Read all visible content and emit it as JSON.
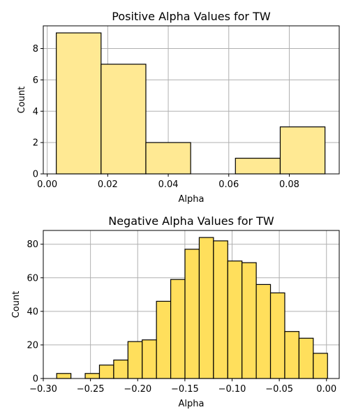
{
  "chart_data": [
    {
      "type": "bar",
      "title": "Positive Alpha Values for TW",
      "xlabel": "Alpha",
      "ylabel": "Count",
      "xlim": [
        -0.0013,
        0.0965
      ],
      "ylim": [
        0,
        9.45
      ],
      "xticks": [
        0.0,
        0.02,
        0.04,
        0.06,
        0.08
      ],
      "xtick_labels": [
        "0.00",
        "0.02",
        "0.04",
        "0.06",
        "0.08"
      ],
      "yticks": [
        0,
        2,
        4,
        6,
        8
      ],
      "ytick_labels": [
        "0",
        "2",
        "4",
        "6",
        "8"
      ],
      "grid": true,
      "color": "#ffe993",
      "bins": [
        {
          "x0": 0.003,
          "x1": 0.0178,
          "count": 9
        },
        {
          "x0": 0.0178,
          "x1": 0.0326,
          "count": 7
        },
        {
          "x0": 0.0326,
          "x1": 0.0474,
          "count": 2
        },
        {
          "x0": 0.0474,
          "x1": 0.0622,
          "count": 0
        },
        {
          "x0": 0.0622,
          "x1": 0.077,
          "count": 1
        },
        {
          "x0": 0.077,
          "x1": 0.0918,
          "count": 3
        }
      ]
    },
    {
      "type": "bar",
      "title": "Negative Alpha Values for TW",
      "xlabel": "Alpha",
      "ylabel": "Count",
      "xlim": [
        -0.3,
        0.0135
      ],
      "ylim": [
        0,
        88.2
      ],
      "xticks": [
        -0.3,
        -0.25,
        -0.2,
        -0.15,
        -0.1,
        -0.05,
        0.0
      ],
      "xtick_labels": [
        "−0.30",
        "−0.25",
        "−0.20",
        "−0.15",
        "−0.10",
        "−0.05",
        "0.00"
      ],
      "yticks": [
        0,
        20,
        40,
        60,
        80
      ],
      "ytick_labels": [
        "0",
        "20",
        "40",
        "60",
        "80"
      ],
      "grid": true,
      "color": "#ffdf5c",
      "bins": [
        {
          "x0": -0.2858,
          "x1": -0.2707,
          "count": 3
        },
        {
          "x0": -0.2707,
          "x1": -0.2556,
          "count": 0
        },
        {
          "x0": -0.2556,
          "x1": -0.2405,
          "count": 3
        },
        {
          "x0": -0.2405,
          "x1": -0.2254,
          "count": 8
        },
        {
          "x0": -0.2254,
          "x1": -0.2103,
          "count": 11
        },
        {
          "x0": -0.2103,
          "x1": -0.1952,
          "count": 22
        },
        {
          "x0": -0.1952,
          "x1": -0.1801,
          "count": 23
        },
        {
          "x0": -0.1801,
          "x1": -0.165,
          "count": 46
        },
        {
          "x0": -0.165,
          "x1": -0.1499,
          "count": 59
        },
        {
          "x0": -0.1499,
          "x1": -0.1348,
          "count": 77
        },
        {
          "x0": -0.1348,
          "x1": -0.1197,
          "count": 84
        },
        {
          "x0": -0.1197,
          "x1": -0.1046,
          "count": 82
        },
        {
          "x0": -0.1046,
          "x1": -0.0895,
          "count": 70
        },
        {
          "x0": -0.0895,
          "x1": -0.0744,
          "count": 69
        },
        {
          "x0": -0.0744,
          "x1": -0.0593,
          "count": 56
        },
        {
          "x0": -0.0593,
          "x1": -0.0442,
          "count": 51
        },
        {
          "x0": -0.0442,
          "x1": -0.0291,
          "count": 28
        },
        {
          "x0": -0.0291,
          "x1": -0.014,
          "count": 24
        },
        {
          "x0": -0.014,
          "x1": 0.0011,
          "count": 15
        }
      ]
    }
  ]
}
